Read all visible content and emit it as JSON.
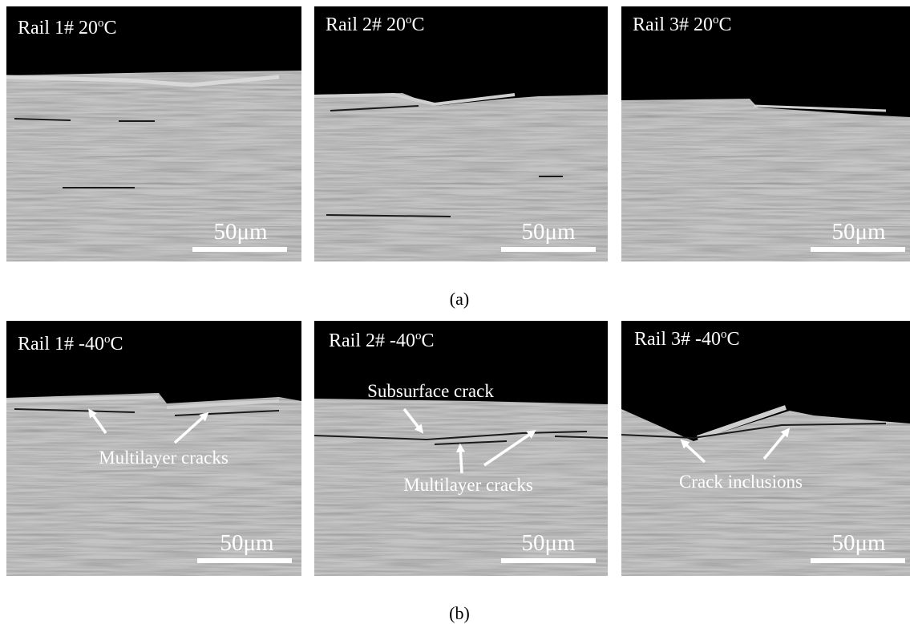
{
  "panels": [
    {
      "label": {
        "text": "Rail 1# 20",
        "sup": "o",
        "unit": "C"
      },
      "scale": "50μm"
    },
    {
      "label": {
        "text": "Rail 2# 20",
        "sup": "o",
        "unit": "C"
      },
      "scale": "50μm"
    },
    {
      "label": {
        "text": "Rail 3# 20",
        "sup": "o",
        "unit": "C"
      },
      "scale": "50μm"
    },
    {
      "label": {
        "text": "Rail 1# -40",
        "sup": "o",
        "unit": "C"
      },
      "scale": "50μm",
      "annotations": [
        "Multilayer cracks"
      ]
    },
    {
      "label": {
        "text": "Rail 2# -40",
        "sup": "o",
        "unit": "C"
      },
      "scale": "50μm",
      "annotations": [
        "Subsurface crack",
        "Multilayer cracks"
      ]
    },
    {
      "label": {
        "text": "Rail 3# -40",
        "sup": "o",
        "unit": "C"
      },
      "scale": "50μm",
      "annotations": [
        "Crack inclusions"
      ]
    }
  ],
  "captions": [
    "(a)",
    "(b)"
  ]
}
